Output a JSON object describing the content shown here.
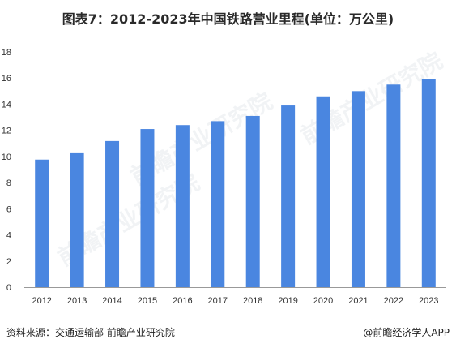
{
  "title": "图表7：2012-2023年中国铁路营业里程(单位：万公里)",
  "source": "资料来源：交通运输部 前瞻产业研究院",
  "credit": "@前瞻经济学人APP",
  "watermark_text": "前瞻产业研究院",
  "colors": {
    "bar": "#4a86e0",
    "axis": "#999999",
    "watermark": "#e8ecef"
  },
  "chart_data": {
    "type": "bar",
    "title": "图表7：2012-2023年中国铁路营业里程(单位：万公里)",
    "xlabel": "",
    "ylabel": "",
    "categories": [
      "2012",
      "2013",
      "2014",
      "2015",
      "2016",
      "2017",
      "2018",
      "2019",
      "2020",
      "2021",
      "2022",
      "2023"
    ],
    "values": [
      9.76,
      10.31,
      11.18,
      12.1,
      12.4,
      12.7,
      13.1,
      13.9,
      14.6,
      15.0,
      15.5,
      15.9
    ],
    "ylim": [
      0,
      18
    ],
    "yticks": [
      0,
      2,
      4,
      6,
      8,
      10,
      12,
      14,
      16,
      18
    ],
    "grid": false,
    "legend": "none"
  }
}
